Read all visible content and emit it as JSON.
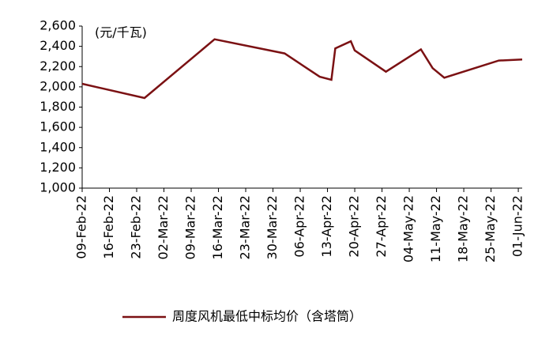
{
  "chart_data": {
    "type": "line",
    "y_label": "(元/千瓦)",
    "x": [
      "2022-02-09",
      "2022-02-25",
      "2022-03-15",
      "2022-04-02",
      "2022-04-11",
      "2022-04-14",
      "2022-04-15",
      "2022-04-19",
      "2022-04-20",
      "2022-04-28",
      "2022-05-07",
      "2022-05-10",
      "2022-05-13",
      "2022-05-27",
      "2022-06-02"
    ],
    "series": [
      {
        "name": "周度风机最低中标均价（含塔筒）",
        "color": "#7b1113",
        "values": [
          2030,
          1890,
          2470,
          2330,
          2100,
          2070,
          2380,
          2450,
          2360,
          2150,
          2370,
          2185,
          2090,
          2260,
          2270
        ]
      }
    ],
    "xlim": [
      "2022-02-09",
      "2022-06-02"
    ],
    "xticks": [
      {
        "value": "2022-02-09",
        "label": "09-Feb-22"
      },
      {
        "value": "2022-02-16",
        "label": "16-Feb-22"
      },
      {
        "value": "2022-02-23",
        "label": "23-Feb-22"
      },
      {
        "value": "2022-03-02",
        "label": "02-Mar-22"
      },
      {
        "value": "2022-03-09",
        "label": "09-Mar-22"
      },
      {
        "value": "2022-03-16",
        "label": "16-Mar-22"
      },
      {
        "value": "2022-03-23",
        "label": "23-Mar-22"
      },
      {
        "value": "2022-03-30",
        "label": "30-Mar-22"
      },
      {
        "value": "2022-04-06",
        "label": "06-Apr-22"
      },
      {
        "value": "2022-04-13",
        "label": "13-Apr-22"
      },
      {
        "value": "2022-04-20",
        "label": "20-Apr-22"
      },
      {
        "value": "2022-04-27",
        "label": "27-Apr-22"
      },
      {
        "value": "2022-05-04",
        "label": "04-May-22"
      },
      {
        "value": "2022-05-11",
        "label": "11-May-22"
      },
      {
        "value": "2022-05-18",
        "label": "18-May-22"
      },
      {
        "value": "2022-05-25",
        "label": "25-May-22"
      },
      {
        "value": "2022-06-01",
        "label": "01-Jun-22"
      }
    ],
    "ylim": [
      1000,
      2600
    ],
    "yticks": [
      {
        "value": 1000,
        "label": "1,000"
      },
      {
        "value": 1200,
        "label": "1,200"
      },
      {
        "value": 1400,
        "label": "1,400"
      },
      {
        "value": 1600,
        "label": "1,600"
      },
      {
        "value": 1800,
        "label": "1,800"
      },
      {
        "value": 2000,
        "label": "2,000"
      },
      {
        "value": 2200,
        "label": "2,200"
      },
      {
        "value": 2400,
        "label": "2,400"
      },
      {
        "value": 2600,
        "label": "2,600"
      }
    ],
    "grid": false
  }
}
